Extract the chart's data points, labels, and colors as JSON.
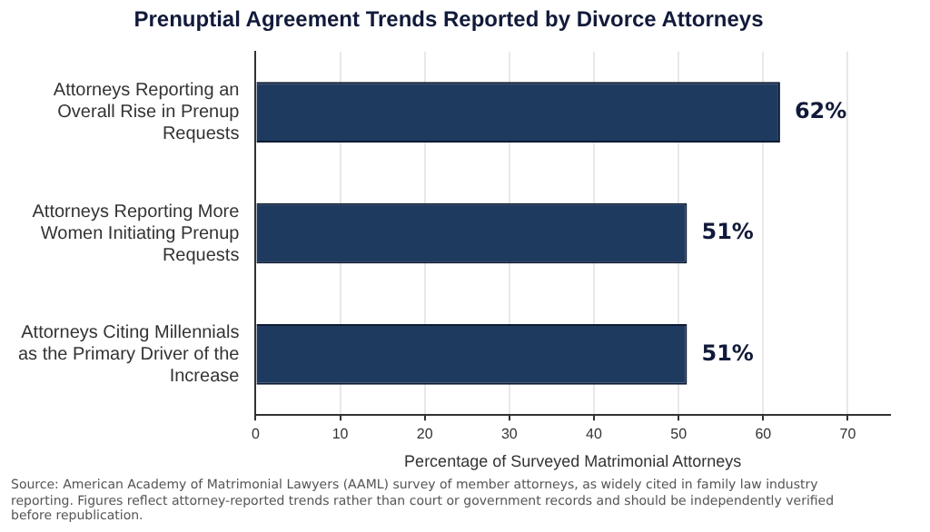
{
  "chart_data": {
    "type": "bar",
    "orientation": "horizontal",
    "title": "Prenuptial Agreement Trends Reported by Divorce Attorneys",
    "categories": [
      "Attorneys Reporting an Overall Rise in Prenup Requests",
      "Attorneys Reporting More Women Initiating Prenup Requests",
      "Attorneys Citing Millennials as the Primary Driver of the Increase"
    ],
    "values": [
      62,
      51,
      51
    ],
    "color": "#1f3a5f",
    "xlabel": "Percentage of Surveyed Matrimonial Attorneys",
    "xlim": [
      0,
      75
    ],
    "xticks": [
      0,
      10,
      20,
      30,
      40,
      50,
      60,
      70
    ],
    "grid": "x",
    "value_labels": [
      "62%",
      "51%",
      "51%"
    ],
    "legend": false,
    "annotations": [
      "Source: American Academy of Matrimonial Lawyers (AAML) survey of member attorneys, as widely cited in family law industry reporting. Figures reflect attorney-reported trends rather than court or government records and should be independently verified before republication."
    ]
  }
}
